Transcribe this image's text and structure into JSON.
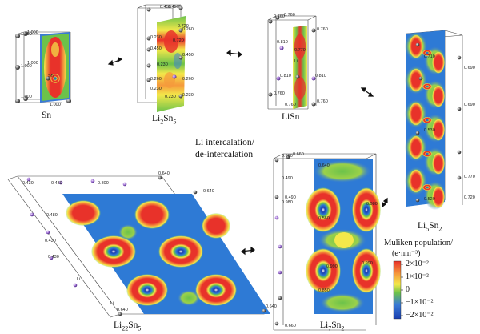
{
  "phases": {
    "sn": "Sn",
    "li2sn5_base": "Li",
    "li2sn5_sub1": "2",
    "li2sn5_mid": "Sn",
    "li2sn5_sub2": "5",
    "lisn": "LiSn",
    "li5sn2_base": "Li",
    "li5sn2_sub1": "5",
    "li5sn2_mid": "Sn",
    "li5sn2_sub2": "2",
    "li7sn2_base": "Li",
    "li7sn2_sub1": "7",
    "li7sn2_mid": "Sn",
    "li7sn2_sub2": "2",
    "li22sn5_base": "Li",
    "li22sn5_sub1": "22",
    "li22sn5_mid": "Sn",
    "li22sn5_sub2": "5"
  },
  "process_label_line1": "Li intercalation/",
  "process_label_line2": "de-intercalation",
  "legend": {
    "title_line1": "Muliken population/",
    "title_line2": "(e·nm⁻³)",
    "ticks": [
      "2×10⁻²",
      "1×10⁻²",
      "0",
      "−1×10⁻²",
      "−2×10⁻²"
    ],
    "colors": [
      "#e8322a",
      "#f59a3c",
      "#f4e84a",
      "#6cc24a",
      "#3a7bd5",
      "#1a3fb0"
    ]
  },
  "atom_labels": {
    "sn": [
      "1.000",
      "1.000",
      "1.000",
      "1.000",
      "1.000",
      "1.000",
      "Sn"
    ],
    "li2sn5": [
      "0.450",
      "0.450",
      "0.230",
      "0.260",
      "0.450",
      "0.230",
      "0.260",
      "0.450",
      "0.260",
      "0.720",
      "0.720",
      "0.230",
      "0.230",
      "0.230"
    ],
    "lisn": [
      "0.760",
      "0.760",
      "0.760",
      "0.810",
      "0.770",
      "0.810",
      "0.810",
      "0.760",
      "0.760",
      "0.760",
      "Li"
    ],
    "li5sn2": [
      "0.710",
      "0.690",
      "0.530",
      "0.690",
      "0.770",
      "0.720",
      "0.520"
    ],
    "li7sn2": [
      "0.660",
      "0.660",
      "0.490",
      "0.490",
      "0.640",
      "0.980",
      "0.980",
      "0.560",
      "0.990",
      "0.990",
      "0.850",
      "0.660"
    ],
    "li22sn5": [
      "0.430",
      "0.430",
      "0.800",
      "0.640",
      "0.480",
      "0.430",
      "0.640",
      "0.430",
      "0.640",
      "0.640",
      "Li",
      "Li"
    ]
  }
}
